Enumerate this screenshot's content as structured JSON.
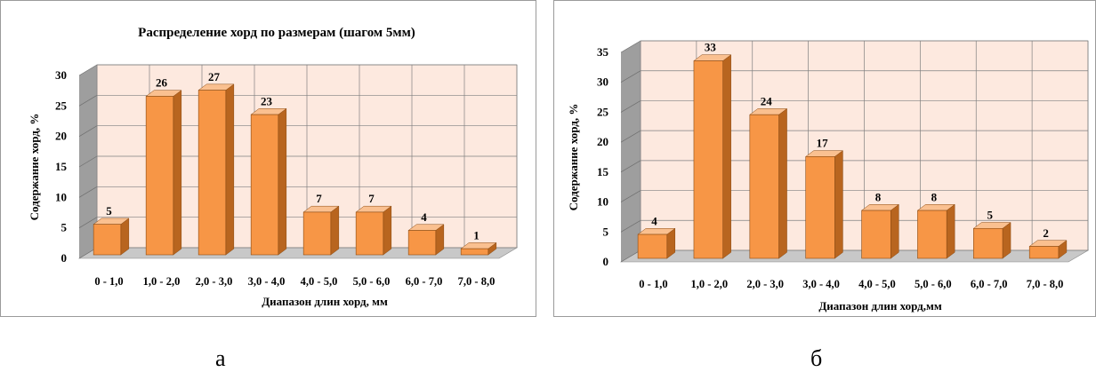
{
  "chart_data": [
    {
      "type": "bar",
      "title": "Распределение хорд по размерам (шагом 5мм)",
      "xlabel": "Диапазон длин хорд, мм",
      "ylabel": "Содержание хорд, %",
      "categories": [
        "0 - 1,0",
        "1,0 - 2,0",
        "2,0 - 3,0",
        "3,0 - 4,0",
        "4,0 - 5,0",
        "5,0 - 6,0",
        "6,0 - 7,0",
        "7,0 - 8,0"
      ],
      "values": [
        5,
        26,
        27,
        23,
        7,
        7,
        4,
        1
      ],
      "data_labels": [
        "5",
        "26",
        "27",
        "23",
        "7",
        "7",
        "4",
        "1"
      ],
      "ylim": [
        0,
        30
      ],
      "yticks": [
        "0",
        "5",
        "10",
        "15",
        "20",
        "25",
        "30"
      ],
      "grid": true,
      "legend": "none",
      "style": "3d-column"
    },
    {
      "type": "bar",
      "title": "",
      "xlabel": "Диапазон длин хорд,мм",
      "ylabel": "Содержание хорд, %",
      "categories": [
        "0 - 1,0",
        "1,0 - 2,0",
        "2,0 - 3,0",
        "3,0 - 4,0",
        "4,0 - 5,0",
        "5,0 - 6,0",
        "6,0 - 7,0",
        "7,0 - 8,0"
      ],
      "values": [
        4,
        33,
        24,
        17,
        8,
        8,
        5,
        2
      ],
      "data_labels": [
        "4",
        "33",
        "24",
        "17",
        "8",
        "8",
        "5",
        "2"
      ],
      "ylim": [
        0,
        35
      ],
      "yticks": [
        "0",
        "5",
        "10",
        "15",
        "20",
        "25",
        "30",
        "35"
      ],
      "grid": true,
      "legend": "none",
      "style": "3d-column"
    }
  ],
  "captions": {
    "left": "а",
    "right": "б"
  },
  "colors": {
    "bar_front": "#F79646",
    "bar_side": "#B8651F",
    "bar_top": "#FAC090",
    "plot_back": "#FDE9DF",
    "plot_floor": "#C8C8C8",
    "plot_wall": "#9E9E9E",
    "grid": "#808080"
  }
}
